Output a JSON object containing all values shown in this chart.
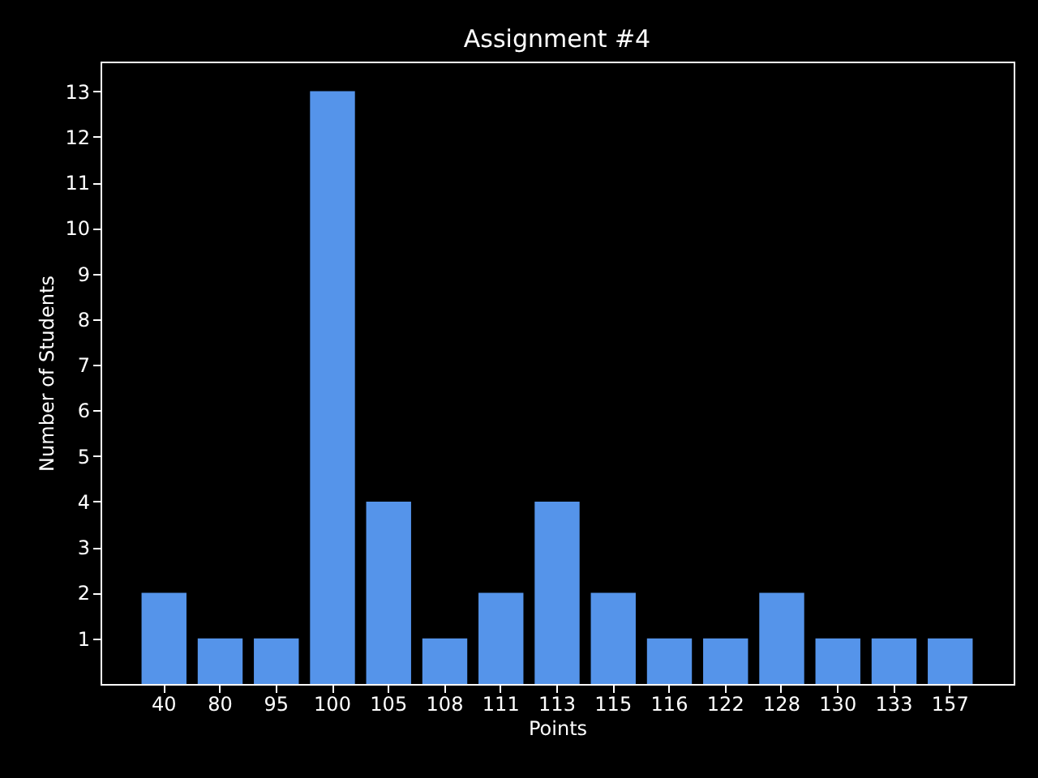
{
  "chart_data": {
    "type": "bar",
    "title": "Assignment #4",
    "xlabel": "Points",
    "ylabel": "Number of Students",
    "categories": [
      "40",
      "80",
      "95",
      "100",
      "105",
      "108",
      "111",
      "113",
      "115",
      "116",
      "122",
      "128",
      "130",
      "133",
      "157"
    ],
    "values": [
      2,
      1,
      1,
      13,
      4,
      1,
      2,
      4,
      2,
      1,
      1,
      2,
      1,
      1,
      1
    ],
    "color": "#5594ea",
    "ylim": [
      0,
      13.65
    ],
    "yticks": [
      1,
      2,
      3,
      4,
      5,
      6,
      7,
      8,
      9,
      10,
      11,
      12,
      13
    ],
    "grid": false
  }
}
